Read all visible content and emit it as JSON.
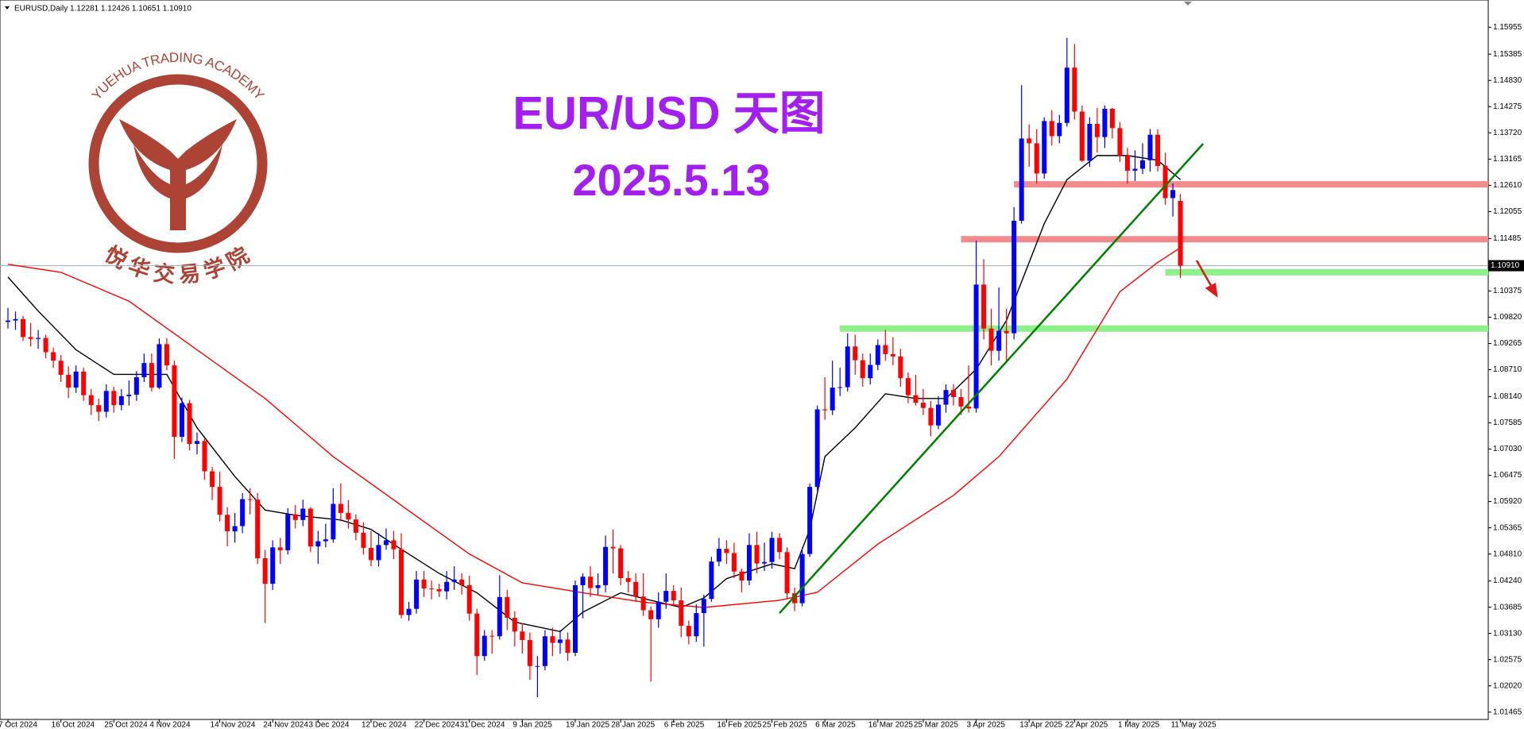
{
  "chart_data": {
    "type": "candlestick",
    "header": "EURUSD,Daily  1.12281 1.12426 1.10651 1.10910",
    "title": "EUR/USD 天图",
    "subtitle": "2025.5.13",
    "watermark": {
      "text_en": "YUEHUA TRADING ACADEMY",
      "text_zh": "悦华交易学院"
    },
    "up_color": "#0000ff",
    "down_color": "#ff0000",
    "categories": [
      "7 Oct 2024",
      null,
      null,
      null,
      null,
      null,
      null,
      "16 Oct 2024",
      null,
      null,
      null,
      null,
      null,
      null,
      "25 Oct 2024",
      null,
      null,
      null,
      null,
      null,
      "4 Nov 2024",
      null,
      null,
      null,
      null,
      null,
      null,
      null,
      "14 Nov 2024",
      null,
      null,
      null,
      null,
      null,
      null,
      "24 Nov 2024",
      null,
      null,
      null,
      null,
      null,
      "3 Dec 2024",
      null,
      null,
      null,
      null,
      null,
      null,
      "12 Dec 2024",
      null,
      null,
      null,
      null,
      null,
      null,
      "22 Dec 2024",
      null,
      null,
      null,
      null,
      null,
      "31 Dec 2024",
      null,
      null,
      null,
      null,
      null,
      null,
      "9 Jan 2025",
      null,
      null,
      null,
      null,
      null,
      null,
      "19 Jan 2025",
      null,
      null,
      null,
      null,
      null,
      "28 Jan 2025",
      null,
      null,
      null,
      null,
      null,
      null,
      "6 Feb 2025",
      null,
      null,
      null,
      null,
      null,
      null,
      "16 Feb 2025",
      null,
      null,
      null,
      null,
      null,
      "25 Feb 2025",
      null,
      null,
      null,
      null,
      null,
      null,
      "6 Mar 2025",
      null,
      null,
      null,
      null,
      null,
      null,
      "16 Mar 2025",
      null,
      null,
      null,
      null,
      null,
      "25 Mar 2025",
      null,
      null,
      null,
      null,
      null,
      null,
      "3 Apr 2025",
      null,
      null,
      null,
      null,
      null,
      null,
      "13 Apr 2025",
      null,
      null,
      null,
      null,
      null,
      "22 Apr 2025",
      null,
      null,
      null,
      null,
      null,
      null,
      "1 May 2025",
      null,
      null,
      null,
      null,
      null,
      null,
      "11 May 2025"
    ],
    "ohlc": [
      [
        1.0972,
        1.1002,
        1.0958,
        1.0975
      ],
      [
        1.0975,
        1.0994,
        1.0955,
        1.0978
      ],
      [
        1.0978,
        1.0985,
        1.0932,
        1.094
      ],
      [
        1.094,
        1.097,
        1.092,
        1.0936
      ],
      [
        1.0936,
        1.0955,
        1.0915,
        1.0938
      ],
      [
        1.0938,
        1.0945,
        1.0895,
        1.0908
      ],
      [
        1.0908,
        1.0918,
        1.0875,
        1.089
      ],
      [
        1.089,
        1.0902,
        1.0845,
        1.086
      ],
      [
        1.086,
        1.0878,
        1.0811,
        1.0833
      ],
      [
        1.0833,
        1.088,
        1.0822,
        1.0867
      ],
      [
        1.0867,
        1.0875,
        1.0805,
        1.0817
      ],
      [
        1.0817,
        1.083,
        1.0775,
        1.0796
      ],
      [
        1.0796,
        1.081,
        1.0762,
        1.0782
      ],
      [
        1.0782,
        1.084,
        1.077,
        1.0826
      ],
      [
        1.0826,
        1.0835,
        1.078,
        1.0796
      ],
      [
        1.0796,
        1.083,
        1.0785,
        1.0815
      ],
      [
        1.0815,
        1.0848,
        1.0795,
        1.0818
      ],
      [
        1.0818,
        1.0868,
        1.0805,
        1.0855
      ],
      [
        1.0855,
        1.0905,
        1.0845,
        1.0885
      ],
      [
        1.0885,
        1.0905,
        1.0825,
        1.0833
      ],
      [
        1.0833,
        1.0937,
        1.083,
        1.0925
      ],
      [
        1.0925,
        1.0938,
        1.087,
        1.088
      ],
      [
        1.088,
        1.089,
        1.0682,
        1.0729
      ],
      [
        1.0729,
        1.0812,
        1.0718,
        1.08
      ],
      [
        1.08,
        1.0807,
        1.07,
        1.0714
      ],
      [
        1.0714,
        1.0738,
        1.0692,
        1.072
      ],
      [
        1.072,
        1.0725,
        1.0638,
        1.0656
      ],
      [
        1.0656,
        1.0665,
        1.0595,
        1.0623
      ],
      [
        1.0623,
        1.0655,
        1.055,
        1.0564
      ],
      [
        1.0564,
        1.058,
        1.0497,
        1.0529
      ],
      [
        1.0529,
        1.0568,
        1.0505,
        1.054
      ],
      [
        1.054,
        1.061,
        1.0525,
        1.0597
      ],
      [
        1.0597,
        1.062,
        1.0565,
        1.0596
      ],
      [
        1.0596,
        1.061,
        1.046,
        1.0472
      ],
      [
        1.0472,
        1.049,
        1.0335,
        1.0418
      ],
      [
        1.0418,
        1.051,
        1.0405,
        1.0495
      ],
      [
        1.0495,
        1.0515,
        1.046,
        1.0489
      ],
      [
        1.0489,
        1.0578,
        1.048,
        1.0565
      ],
      [
        1.0565,
        1.0585,
        1.0535,
        1.0553
      ],
      [
        1.0553,
        1.0596,
        1.054,
        1.0577
      ],
      [
        1.0577,
        1.058,
        1.0485,
        1.0497
      ],
      [
        1.0497,
        1.053,
        1.046,
        1.0508
      ],
      [
        1.0508,
        1.0545,
        1.0495,
        1.0512
      ],
      [
        1.0512,
        1.062,
        1.0505,
        1.0587
      ],
      [
        1.0587,
        1.063,
        1.055,
        1.0568
      ],
      [
        1.0568,
        1.0595,
        1.0535,
        1.0554
      ],
      [
        1.0554,
        1.0565,
        1.051,
        1.0526
      ],
      [
        1.0526,
        1.0548,
        1.048,
        1.0494
      ],
      [
        1.0494,
        1.053,
        1.0455,
        1.0468
      ],
      [
        1.0468,
        1.0525,
        1.0455,
        1.05
      ],
      [
        1.05,
        1.0535,
        1.049,
        1.051
      ],
      [
        1.051,
        1.053,
        1.047,
        1.0491
      ],
      [
        1.0491,
        1.0525,
        1.0345,
        1.0352
      ],
      [
        1.0352,
        1.038,
        1.034,
        1.0365
      ],
      [
        1.0365,
        1.0445,
        1.0355,
        1.0427
      ],
      [
        1.0427,
        1.0445,
        1.039,
        1.0408
      ],
      [
        1.0408,
        1.0425,
        1.0385,
        1.0407
      ],
      [
        1.0407,
        1.0418,
        1.039,
        1.0402
      ],
      [
        1.0402,
        1.0445,
        1.0385,
        1.0422
      ],
      [
        1.0422,
        1.0455,
        1.0405,
        1.0427
      ],
      [
        1.0427,
        1.044,
        1.0395,
        1.0415
      ],
      [
        1.0415,
        1.0435,
        1.034,
        1.0355
      ],
      [
        1.0355,
        1.0365,
        1.0225,
        1.0265
      ],
      [
        1.0265,
        1.032,
        1.0255,
        1.0308
      ],
      [
        1.0308,
        1.032,
        1.027,
        1.0307
      ],
      [
        1.0307,
        1.0436,
        1.03,
        1.039
      ],
      [
        1.039,
        1.0405,
        1.032,
        1.0346
      ],
      [
        1.0346,
        1.036,
        1.0285,
        1.0317
      ],
      [
        1.0317,
        1.0335,
        1.027,
        1.0299
      ],
      [
        1.0299,
        1.0315,
        1.0215,
        1.0244
      ],
      [
        1.0244,
        1.0265,
        1.0178,
        1.0244
      ],
      [
        1.0244,
        1.032,
        1.0235,
        1.0307
      ],
      [
        1.0307,
        1.0325,
        1.0265,
        1.0293
      ],
      [
        1.0293,
        1.032,
        1.027,
        1.03
      ],
      [
        1.03,
        1.0315,
        1.0255,
        1.0272
      ],
      [
        1.0272,
        1.0425,
        1.0265,
        1.0415
      ],
      [
        1.0415,
        1.044,
        1.0345,
        1.0433
      ],
      [
        1.0433,
        1.0455,
        1.039,
        1.0409
      ],
      [
        1.0409,
        1.044,
        1.0395,
        1.0415
      ],
      [
        1.0415,
        1.052,
        1.04,
        1.0496
      ],
      [
        1.0496,
        1.0533,
        1.044,
        1.0493
      ],
      [
        1.0493,
        1.05,
        1.0415,
        1.043
      ],
      [
        1.043,
        1.0445,
        1.04,
        1.0422
      ],
      [
        1.0422,
        1.044,
        1.038,
        1.0391
      ],
      [
        1.0391,
        1.044,
        1.035,
        1.0362
      ],
      [
        1.0362,
        1.037,
        1.0211,
        1.0343
      ],
      [
        1.0343,
        1.04,
        1.0325,
        1.038
      ],
      [
        1.038,
        1.044,
        1.0365,
        1.0403
      ],
      [
        1.0403,
        1.0415,
        1.037,
        1.0383
      ],
      [
        1.0383,
        1.041,
        1.0305,
        1.0329
      ],
      [
        1.0329,
        1.034,
        1.029,
        1.0307
      ],
      [
        1.0307,
        1.0375,
        1.0295,
        1.0356
      ],
      [
        1.0356,
        1.0395,
        1.0285,
        1.0386
      ],
      [
        1.0386,
        1.0475,
        1.038,
        1.0465
      ],
      [
        1.0465,
        1.0515,
        1.0455,
        1.0492
      ],
      [
        1.0492,
        1.051,
        1.046,
        1.0483
      ],
      [
        1.0483,
        1.0505,
        1.043,
        1.0444
      ],
      [
        1.0444,
        1.045,
        1.04,
        1.0425
      ],
      [
        1.0425,
        1.0525,
        1.0415,
        1.05
      ],
      [
        1.05,
        1.0528,
        1.044,
        1.0461
      ],
      [
        1.0461,
        1.0505,
        1.0445,
        1.0464
      ],
      [
        1.0464,
        1.0528,
        1.045,
        1.0515
      ],
      [
        1.0515,
        1.0525,
        1.047,
        1.0485
      ],
      [
        1.0485,
        1.0495,
        1.0385,
        1.0398
      ],
      [
        1.0398,
        1.041,
        1.036,
        1.0377
      ],
      [
        1.0377,
        1.0495,
        1.037,
        1.0481
      ],
      [
        1.0481,
        1.063,
        1.0475,
        1.0623
      ],
      [
        1.0623,
        1.0795,
        1.0615,
        1.0787
      ],
      [
        1.0787,
        1.0855,
        1.0765,
        1.0785
      ],
      [
        1.0785,
        1.089,
        1.0775,
        1.0833
      ],
      [
        1.0833,
        1.0875,
        1.0815,
        1.0834
      ],
      [
        1.0834,
        1.0948,
        1.0825,
        1.092
      ],
      [
        1.092,
        1.0945,
        1.086,
        1.0891
      ],
      [
        1.0891,
        1.0905,
        1.0835,
        1.0853
      ],
      [
        1.0853,
        1.0905,
        1.084,
        1.0881
      ],
      [
        1.0881,
        1.0935,
        1.087,
        1.0923
      ],
      [
        1.0923,
        1.0955,
        1.089,
        1.0904
      ],
      [
        1.0904,
        1.094,
        1.088,
        1.0899
      ],
      [
        1.0899,
        1.0915,
        1.0835,
        1.0853
      ],
      [
        1.0853,
        1.0865,
        1.08,
        1.0817
      ],
      [
        1.0817,
        1.086,
        1.0795,
        1.0801
      ],
      [
        1.0801,
        1.083,
        1.0775,
        1.079
      ],
      [
        1.079,
        1.0805,
        1.073,
        1.0753
      ],
      [
        1.0753,
        1.0815,
        1.0745,
        1.0797
      ],
      [
        1.0797,
        1.084,
        1.078,
        1.0828
      ],
      [
        1.0828,
        1.084,
        1.0795,
        1.0813
      ],
      [
        1.0813,
        1.083,
        1.0775,
        1.0793
      ],
      [
        1.0793,
        1.088,
        1.078,
        1.0789
      ],
      [
        1.0789,
        1.1144,
        1.078,
        1.1051
      ],
      [
        1.1051,
        1.1105,
        1.0935,
        1.0958
      ],
      [
        1.0958,
        1.1,
        1.088,
        1.0911
      ],
      [
        1.0911,
        1.1045,
        1.089,
        1.0953
      ],
      [
        1.0953,
        1.1,
        1.089,
        1.0948
      ],
      [
        1.0948,
        1.1215,
        1.0935,
        1.1186
      ],
      [
        1.1186,
        1.1473,
        1.118,
        1.136
      ],
      [
        1.136,
        1.139,
        1.13,
        1.135
      ],
      [
        1.135,
        1.138,
        1.1265,
        1.1286
      ],
      [
        1.1286,
        1.1405,
        1.1275,
        1.1397
      ],
      [
        1.1397,
        1.142,
        1.1345,
        1.1365
      ],
      [
        1.1365,
        1.141,
        1.135,
        1.1393
      ],
      [
        1.1393,
        1.1573,
        1.1385,
        1.151
      ],
      [
        1.151,
        1.156,
        1.14,
        1.1417
      ],
      [
        1.1417,
        1.143,
        1.131,
        1.1313
      ],
      [
        1.1313,
        1.1405,
        1.13,
        1.1391
      ],
      [
        1.1391,
        1.1425,
        1.133,
        1.1363
      ],
      [
        1.1363,
        1.143,
        1.134,
        1.1423
      ],
      [
        1.1423,
        1.1425,
        1.136,
        1.1382
      ],
      [
        1.1382,
        1.1395,
        1.131,
        1.1324
      ],
      [
        1.1324,
        1.134,
        1.1265,
        1.1292
      ],
      [
        1.1292,
        1.1335,
        1.127,
        1.1296
      ],
      [
        1.1296,
        1.135,
        1.1285,
        1.1314
      ],
      [
        1.1314,
        1.138,
        1.129,
        1.1368
      ],
      [
        1.1368,
        1.138,
        1.129,
        1.1302
      ],
      [
        1.1302,
        1.133,
        1.122,
        1.1234
      ],
      [
        1.1234,
        1.1265,
        1.1195,
        1.1251
      ],
      [
        1.12281,
        1.12426,
        1.10651,
        1.1091
      ]
    ],
    "moving_averages": [
      {
        "color": "#000000",
        "x": [
          0,
          4,
          9,
          14,
          18,
          21,
          25,
          30,
          34,
          38,
          44,
          48,
          52,
          57,
          62,
          67,
          73,
          76,
          81,
          85,
          89,
          92,
          95,
          101,
          104,
          106,
          108,
          112,
          116,
          120,
          124,
          128,
          132,
          137,
          140,
          144,
          148,
          152,
          155
        ],
        "values": [
          1.1067,
          1.0995,
          1.0913,
          1.0861,
          1.0861,
          1.0861,
          1.0748,
          1.0645,
          1.0574,
          1.0563,
          1.0553,
          1.0533,
          1.0491,
          1.044,
          1.0399,
          1.0337,
          1.0317,
          1.0358,
          1.0399,
          1.0383,
          1.0368,
          1.0388,
          1.0429,
          1.046,
          1.045,
          1.0533,
          1.0687,
          1.0748,
          1.082,
          1.081,
          1.081,
          1.0872,
          1.0975,
          1.118,
          1.1273,
          1.1324,
          1.1324,
          1.1314,
          1.1273
        ]
      },
      {
        "color": "#ff0000",
        "x": [
          0,
          7,
          16,
          25,
          34,
          43,
          52,
          61,
          68,
          76,
          84,
          92,
          102,
          107,
          115,
          125,
          131,
          140,
          147,
          152,
          155
        ],
        "values": [
          1.1094,
          1.1077,
          1.1016,
          1.0913,
          1.081,
          1.0687,
          1.0584,
          1.0481,
          1.042,
          1.0399,
          1.0379,
          1.0368,
          1.0383,
          1.04,
          1.0502,
          1.0605,
          1.0687,
          1.0851,
          1.1036,
          1.1098,
          1.1129
        ]
      }
    ],
    "levels": [
      {
        "value": 1.1263,
        "color": "#f28b8b",
        "start": 133
      },
      {
        "value": 1.1147,
        "color": "#f28b8b",
        "start": 126
      },
      {
        "value": 1.1077,
        "color": "#8ef08a",
        "start": 153
      },
      {
        "value": 1.0958,
        "color": "#8ef08a",
        "start": 110
      }
    ],
    "trendline": {
      "color": "#008000",
      "x": [
        102,
        158
      ],
      "values": [
        1.0356,
        1.1349
      ]
    },
    "price_label": {
      "value": 1.1091,
      "label": "1.10910"
    },
    "ylim": [
      1.0136,
      1.1643
    ],
    "yticks": [
      1.15955,
      1.15385,
      {
        "value": 1.1483,
        "label": "1.14830"
      },
      1.14275,
      {
        "value": 1.1372,
        "label": "1.13720"
      },
      1.13165,
      {
        "value": 1.1261,
        "label": "1.12610"
      },
      1.12055,
      1.11485,
      1.10375,
      {
        "value": 1.0982,
        "label": "1.09820"
      },
      1.09265,
      {
        "value": 1.0871,
        "label": "1.08710"
      },
      {
        "value": 1.0814,
        "label": "1.08140"
      },
      1.07585,
      {
        "value": 1.0703,
        "label": "1.07030"
      },
      1.06475,
      {
        "value": 1.0592,
        "label": "1.05920"
      },
      1.05365,
      {
        "value": 1.0481,
        "label": "1.04810"
      },
      {
        "value": 1.0424,
        "label": "1.04240"
      },
      1.03685,
      {
        "value": 1.0313,
        "label": "1.03130"
      },
      1.02575,
      {
        "value": 1.0202,
        "label": "1.02020"
      },
      1.01465
    ]
  }
}
